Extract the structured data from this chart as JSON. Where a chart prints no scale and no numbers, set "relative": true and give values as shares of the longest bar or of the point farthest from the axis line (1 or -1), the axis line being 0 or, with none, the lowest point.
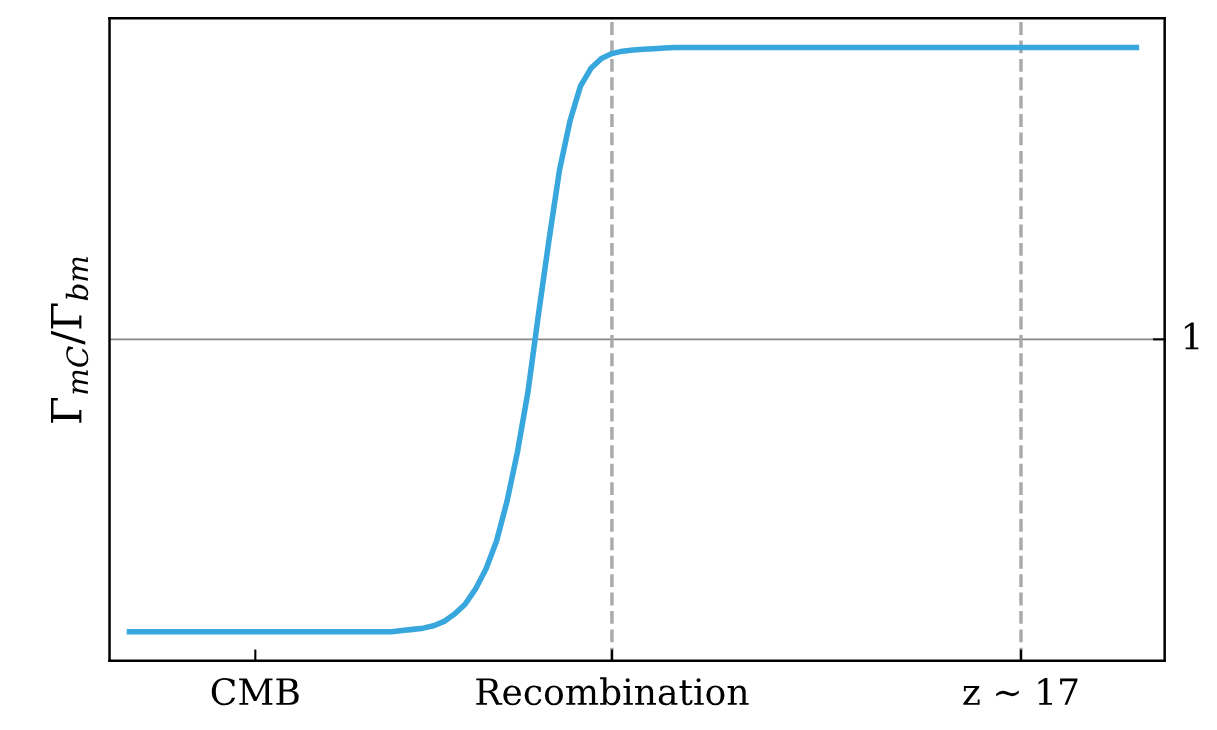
{
  "chart_data": {
    "type": "line",
    "relative": true,
    "ylabel": "Γ$_{mC}$/Γ$_{bm}$",
    "categories": [
      null,
      null,
      null,
      null,
      null,
      null,
      null,
      null,
      null,
      null,
      null,
      null,
      "CMB",
      null,
      null,
      null,
      null,
      null,
      null,
      null,
      null,
      null,
      null,
      null,
      null,
      null,
      null,
      null,
      null,
      null,
      null,
      null,
      null,
      null,
      null,
      null,
      null,
      null,
      null,
      null,
      null,
      null,
      null,
      null,
      null,
      null,
      "Recombination",
      null,
      null,
      null,
      null,
      null,
      null,
      null,
      null,
      null,
      null,
      null,
      null,
      null,
      null,
      null,
      null,
      null,
      null,
      null,
      null,
      null,
      null,
      null,
      null,
      null,
      null,
      null,
      null,
      null,
      null,
      null,
      null,
      null,
      null,
      null,
      null,
      null,
      null,
      "z ∼ 17",
      null,
      null,
      null,
      null,
      null,
      null,
      null,
      null,
      null,
      null,
      null
    ],
    "series": [
      {
        "color": "#38a7dd",
        "values": [
          0.047,
          0.047,
          0.047,
          0.047,
          0.047,
          0.047,
          0.047,
          0.047,
          0.047,
          0.047,
          0.047,
          0.047,
          0.047,
          0.047,
          0.047,
          0.047,
          0.047,
          0.047,
          0.047,
          0.047,
          0.047,
          0.047,
          0.047,
          0.047,
          0.047,
          0.047,
          0.049,
          0.051,
          0.053,
          0.057,
          0.064,
          0.076,
          0.092,
          0.117,
          0.15,
          0.195,
          0.26,
          0.341,
          0.439,
          0.565,
          0.686,
          0.8,
          0.88,
          0.937,
          0.966,
          0.982,
          0.99,
          0.994,
          0.996,
          0.997,
          0.998,
          0.999,
          1,
          1,
          1,
          1,
          1,
          1,
          1,
          1,
          1,
          1,
          1,
          1,
          1,
          1,
          1,
          1,
          1,
          1,
          1,
          1,
          1,
          1,
          1,
          1,
          1,
          1,
          1,
          1,
          1,
          1,
          1,
          1,
          1,
          1,
          1,
          1,
          1,
          1,
          1,
          1,
          1,
          1,
          1,
          1,
          1
        ]
      }
    ],
    "ref_lines": [
      {
        "axis": "y",
        "value": 0.524,
        "label": "1",
        "color": "#888888",
        "line_style": "solid"
      },
      {
        "axis": "x",
        "value": "Recombination",
        "color": "#aaaaaa",
        "line_style": "dashed"
      },
      {
        "axis": "x",
        "value": "z ∼ 17",
        "color": "#aaaaaa",
        "line_style": "dashed"
      }
    ],
    "grid": false,
    "marker": "none",
    "line_style": "solid"
  }
}
